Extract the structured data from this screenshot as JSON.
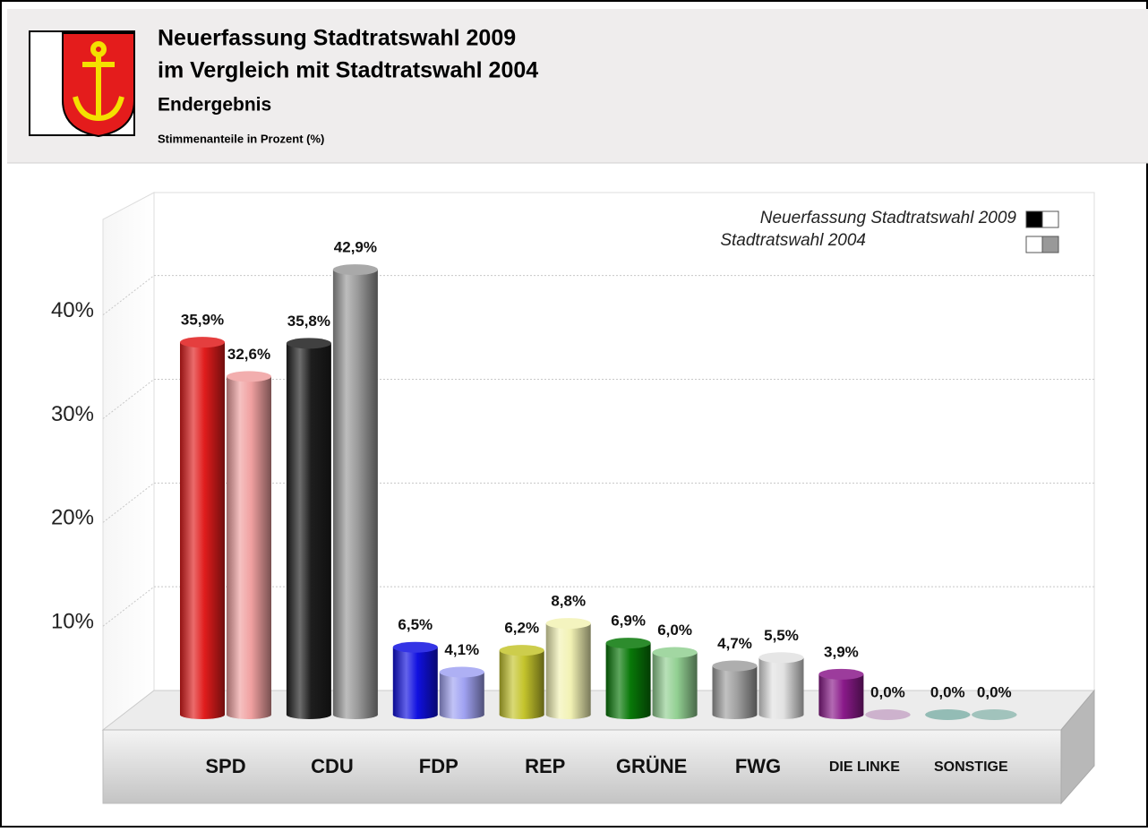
{
  "chart_data": {
    "type": "bar",
    "title": [
      "Neuerfassung Stadtratswahl 2009",
      "im Vergleich mit Stadtratswahl 2004"
    ],
    "subtitle": "Endergebnis",
    "ylabel": "Stimmenanteile in Prozent (%)",
    "categories": [
      "SPD",
      "CDU",
      "FDP",
      "REP",
      "GRÜNE",
      "FWG",
      "DIE LINKE",
      "SONSTIGE"
    ],
    "series": [
      {
        "name": "Neuerfassung Stadtratswahl 2009",
        "colors": [
          "#e01c1c",
          "#1e1e1e",
          "#1010e0",
          "#c4c42c",
          "#087808",
          "#a0a0a0",
          "#8a1a8a",
          "#80b0a8"
        ],
        "values": [
          35.9,
          35.8,
          6.5,
          6.2,
          6.9,
          4.7,
          3.9,
          0.0
        ],
        "value_labels": [
          "35,9%",
          "35,8%",
          "6,5%",
          "6,2%",
          "6,9%",
          "4,7%",
          "3,9%",
          "0,0%"
        ]
      },
      {
        "name": "Stadtratswahl 2004",
        "colors": [
          "#f0a0a0",
          "#9a9a9a",
          "#a0a2f2",
          "#f2f2b4",
          "#92d092",
          "#e2e2e2",
          "#c4a4c4",
          "#90b8b0"
        ],
        "values": [
          32.6,
          42.9,
          4.1,
          8.8,
          6.0,
          5.5,
          0.0,
          0.0
        ],
        "value_labels": [
          "32,6%",
          "42,9%",
          "4,1%",
          "8,8%",
          "6,0%",
          "5,5%",
          "0,0%",
          "0,0%"
        ]
      }
    ],
    "ylim": [
      0,
      48
    ],
    "yticks": [
      {
        "value": 10,
        "label": "10%"
      },
      {
        "value": 20,
        "label": "20%"
      },
      {
        "value": 30,
        "label": "30%"
      },
      {
        "value": 40,
        "label": "40%"
      }
    ],
    "grid": true,
    "legend": "top-right"
  }
}
